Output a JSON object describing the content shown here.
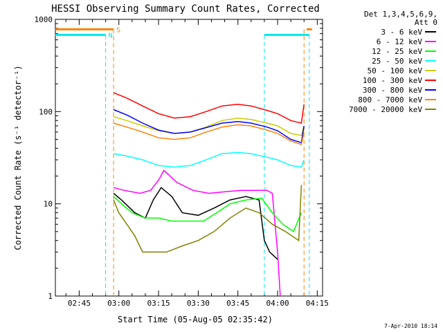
{
  "chart_data": {
    "type": "line",
    "title": "HESSI Observing Summary Count Rates, Corrected",
    "xlabel": "Start Time (05-Aug-05 02:35:42)",
    "ylabel": "Corrected Count Rate (s⁻¹ detector⁻¹)",
    "y_scale": "log",
    "ylim": [
      1,
      1000
    ],
    "xlim": [
      "02:36",
      "04:17"
    ],
    "x_ticks": [
      "02:45",
      "03:00",
      "03:15",
      "03:30",
      "03:45",
      "04:00",
      "04:15"
    ],
    "y_ticks": [
      "1",
      "10",
      "100",
      "1000"
    ],
    "legend_title": [
      "Det 1,3,4,5,6,9,",
      "Att 0"
    ],
    "legend_placement": "right",
    "footer": "7-Apr-2010 18:14",
    "flags": [
      {
        "label": "S",
        "color": "#ff8000",
        "level": 780,
        "segments": [
          [
            "02:36",
            "02:58"
          ],
          [
            "04:11",
            "04:13"
          ]
        ],
        "line_times": [
          "02:58",
          "04:10"
        ]
      },
      {
        "label": "N",
        "color": "#00e5ee",
        "level": 680,
        "segments": [
          [
            "02:36",
            "02:55"
          ],
          [
            "03:55",
            "04:12"
          ]
        ],
        "line_times": [
          "02:55",
          "03:55",
          "04:12"
        ]
      }
    ],
    "series": [
      {
        "name": "3 - 6 keV",
        "color": "#000000",
        "x": [
          "02:58",
          "03:01",
          "03:06",
          "03:10",
          "03:13",
          "03:16",
          "03:20",
          "03:24",
          "03:30",
          "03:36",
          "03:42",
          "03:48",
          "03:53",
          "03:55",
          "03:57",
          "04:00"
        ],
        "y": [
          13,
          11,
          8,
          7,
          11,
          15,
          12,
          8,
          7.5,
          9,
          11,
          12,
          11,
          4,
          3,
          2.5
        ]
      },
      {
        "name": "6 - 12 keV",
        "color": "#ff00ff",
        "x": [
          "02:58",
          "03:02",
          "03:08",
          "03:12",
          "03:15",
          "03:17",
          "03:22",
          "03:28",
          "03:34",
          "03:40",
          "03:46",
          "03:52",
          "03:56",
          "03:58",
          "04:00",
          "04:01"
        ],
        "y": [
          15,
          14,
          13,
          14,
          18,
          23,
          17,
          14,
          13,
          13.5,
          14,
          14,
          14,
          13,
          3,
          1
        ]
      },
      {
        "name": "12 - 25 keV",
        "color": "#00ff00",
        "x": [
          "02:58",
          "03:01",
          "03:05",
          "03:10",
          "03:15",
          "03:20",
          "03:26",
          "03:32",
          "03:37",
          "03:42",
          "03:48",
          "03:54",
          "03:58",
          "04:02",
          "04:06",
          "04:09"
        ],
        "y": [
          12,
          10,
          8,
          7,
          7,
          6.5,
          6.5,
          6.5,
          8,
          10,
          11,
          11.5,
          8,
          6,
          5,
          8
        ]
      },
      {
        "name": "25 - 50 keV",
        "color": "#00ffff",
        "x": [
          "02:58",
          "03:03",
          "03:09",
          "03:15",
          "03:21",
          "03:27",
          "03:33",
          "03:39",
          "03:45",
          "03:50",
          "03:56",
          "04:00",
          "04:05",
          "04:09",
          "04:10"
        ],
        "y": [
          35,
          33,
          30,
          26,
          25,
          26,
          30,
          35,
          36,
          35,
          32,
          30,
          26,
          25,
          30
        ]
      },
      {
        "name": "50 - 100 keV",
        "color": "#cccc00",
        "x": [
          "02:58",
          "03:03",
          "03:09",
          "03:15",
          "03:21",
          "03:27",
          "03:33",
          "03:39",
          "03:45",
          "03:50",
          "03:56",
          "04:00",
          "04:05",
          "04:09",
          "04:10"
        ],
        "y": [
          88,
          80,
          70,
          62,
          58,
          60,
          68,
          80,
          85,
          82,
          75,
          70,
          58,
          55,
          70
        ]
      },
      {
        "name": "100 - 300 keV",
        "color": "#ff0000",
        "x": [
          "02:58",
          "03:03",
          "03:09",
          "03:15",
          "03:21",
          "03:27",
          "03:33",
          "03:39",
          "03:45",
          "03:50",
          "03:56",
          "04:00",
          "04:05",
          "04:09",
          "04:10"
        ],
        "y": [
          160,
          140,
          115,
          95,
          85,
          88,
          100,
          115,
          120,
          115,
          103,
          95,
          80,
          75,
          120
        ]
      },
      {
        "name": "300 - 800 keV",
        "color": "#0000ff",
        "x": [
          "02:58",
          "03:03",
          "03:09",
          "03:15",
          "03:21",
          "03:27",
          "03:33",
          "03:39",
          "03:45",
          "03:50",
          "03:56",
          "04:00",
          "04:05",
          "04:09",
          "04:10"
        ],
        "y": [
          105,
          92,
          75,
          63,
          58,
          60,
          67,
          75,
          78,
          75,
          68,
          62,
          50,
          46,
          70
        ]
      },
      {
        "name": "800 - 7000 keV",
        "color": "#ff8000",
        "x": [
          "02:58",
          "03:03",
          "03:09",
          "03:15",
          "03:21",
          "03:27",
          "03:33",
          "03:39",
          "03:45",
          "03:50",
          "03:56",
          "04:00",
          "04:05",
          "04:09",
          "04:10"
        ],
        "y": [
          75,
          68,
          60,
          52,
          50,
          52,
          60,
          68,
          72,
          70,
          63,
          58,
          48,
          44,
          60
        ]
      },
      {
        "name": "7000 - 20000 keV",
        "color": "#808000",
        "x": [
          "02:58",
          "03:00",
          "03:03",
          "03:06",
          "03:09",
          "03:12",
          "03:18",
          "03:24",
          "03:30",
          "03:36",
          "03:42",
          "03:48",
          "03:53",
          "03:58",
          "04:03",
          "04:08",
          "04:09"
        ],
        "y": [
          11,
          8,
          6,
          4.5,
          3,
          3,
          3,
          3.5,
          4,
          5,
          7,
          9,
          8,
          6,
          5,
          4,
          16
        ]
      }
    ]
  }
}
